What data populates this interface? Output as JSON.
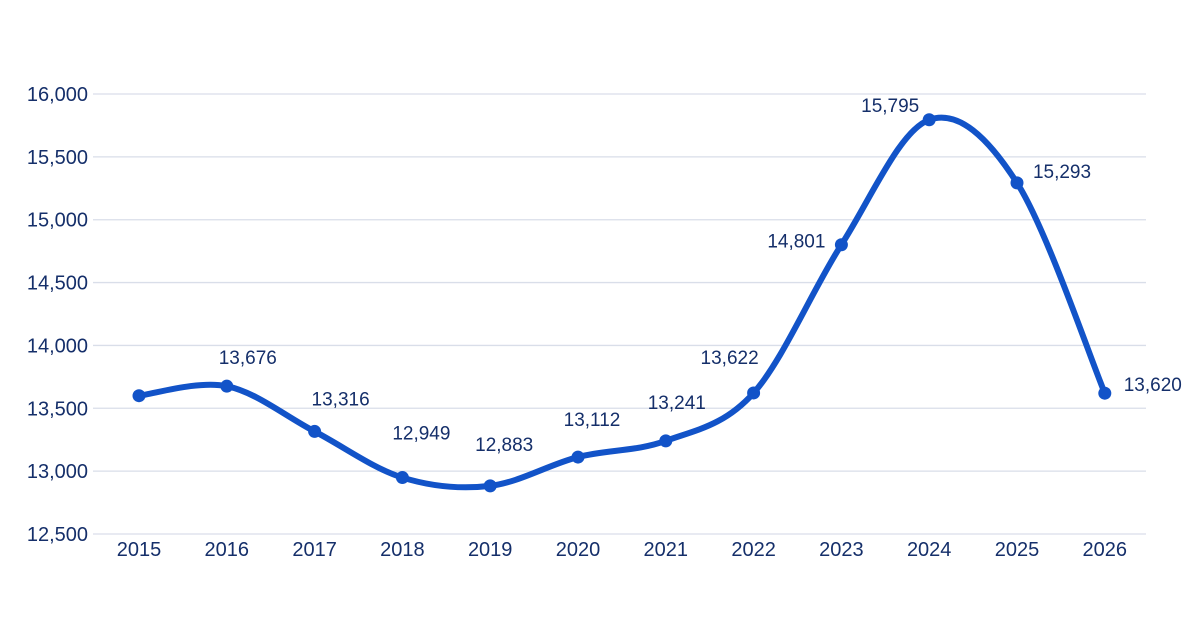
{
  "chart_data": {
    "type": "line",
    "title": "",
    "xlabel": "",
    "ylabel": "",
    "categories": [
      "2015",
      "2016",
      "2017",
      "2018",
      "2019",
      "2020",
      "2021",
      "2022",
      "2023",
      "2024",
      "2025",
      "2026"
    ],
    "values": [
      13600,
      13676,
      13316,
      12949,
      12883,
      13112,
      13241,
      13622,
      14801,
      15795,
      15293,
      13620
    ],
    "point_labels": [
      "",
      "13,676",
      "13,316",
      "12,949",
      "12,883",
      "13,112",
      "13,241",
      "13,622",
      "14,801",
      "15,795",
      "15,293",
      "13,620"
    ],
    "ylim": [
      12500,
      16000
    ],
    "ytick_values": [
      12500,
      13000,
      13500,
      14000,
      14500,
      15000,
      15500,
      16000
    ],
    "ytick_labels": [
      "12,500",
      "13,000",
      "13,500",
      "14,000",
      "14,500",
      "15,000",
      "15,500",
      "16,000"
    ],
    "grid": "horizontal",
    "legend": "none"
  },
  "colors": {
    "line": "#1253c8",
    "point": "#1253c8",
    "text": "#152f6a",
    "grid": "#d9dee9",
    "background": "#ffffff"
  }
}
